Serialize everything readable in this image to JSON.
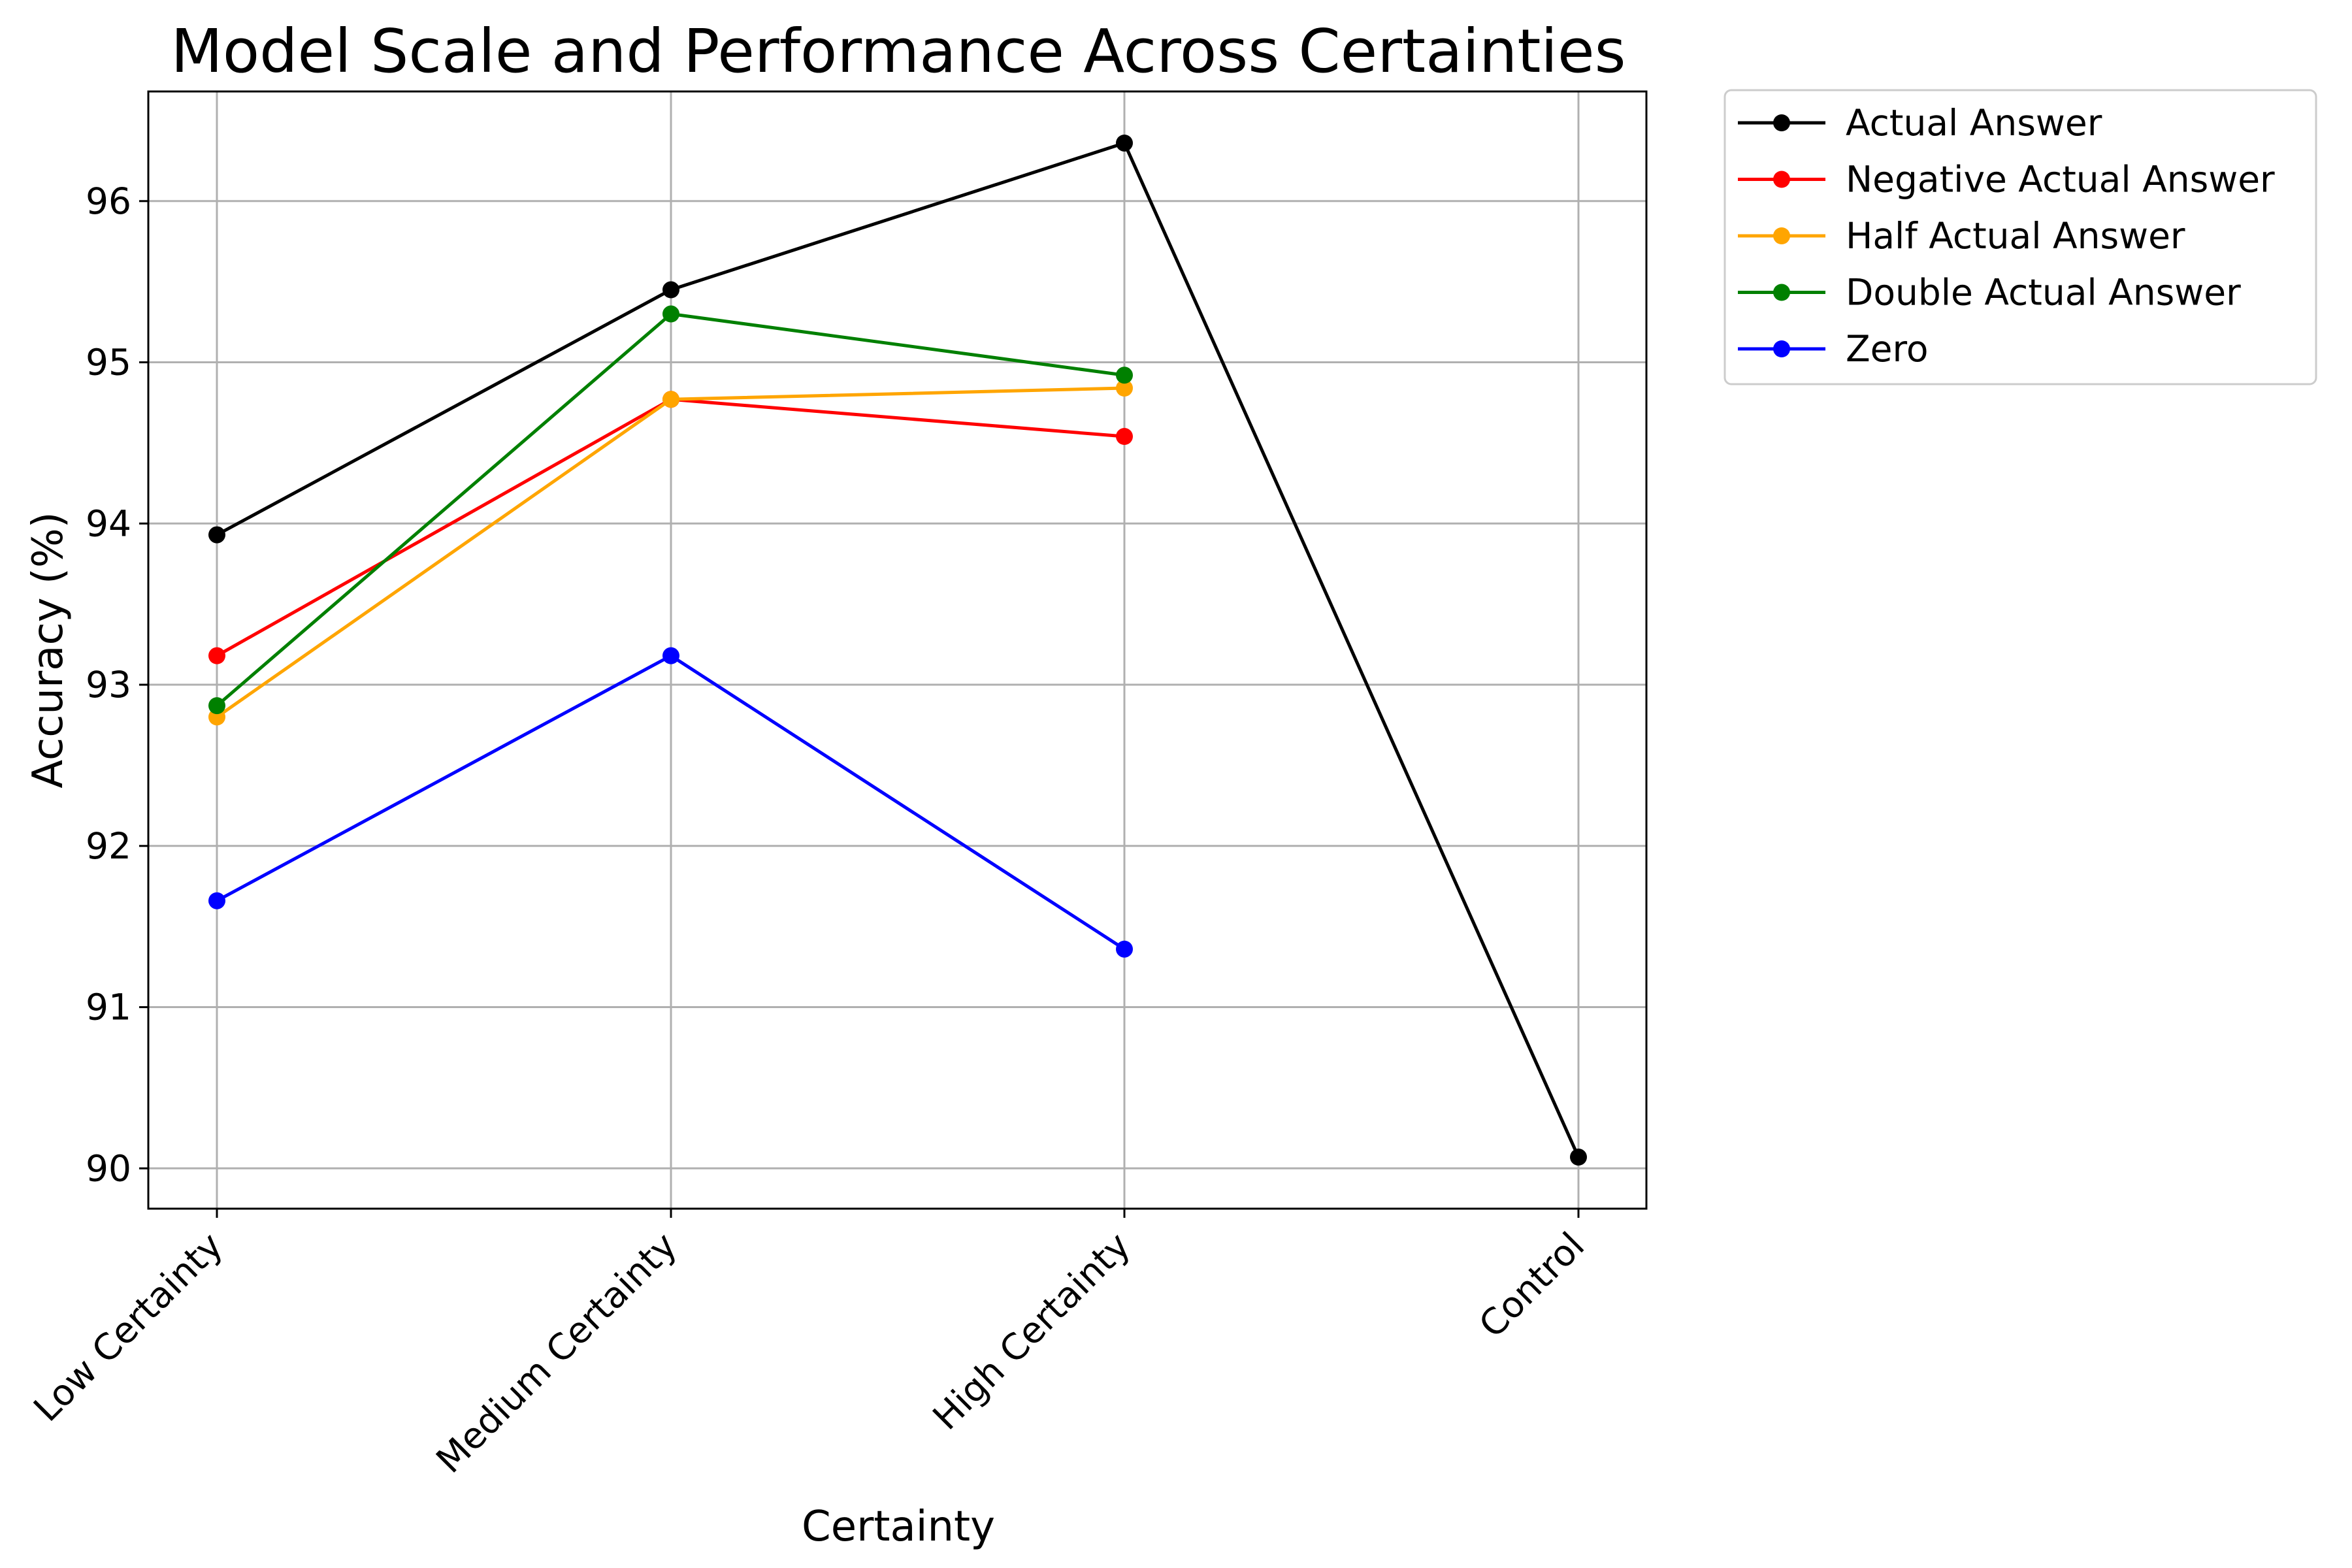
{
  "chart_data": {
    "type": "line",
    "title": "Model Scale and Performance Across Certainties",
    "xlabel": "Certainty",
    "ylabel": "Accuracy (%)",
    "categories": [
      "Low Certainty",
      "Medium Certainty",
      "High Certainty",
      "Control"
    ],
    "ylim": [
      89.75,
      96.68
    ],
    "yticks": [
      90,
      91,
      92,
      93,
      94,
      95,
      96
    ],
    "grid": true,
    "legend_position": "outside-top-right",
    "series": [
      {
        "name": "Actual Answer",
        "color": "#000000",
        "values": [
          93.93,
          95.45,
          96.36,
          90.07
        ]
      },
      {
        "name": "Negative Actual Answer",
        "color": "#ff0000",
        "values": [
          93.18,
          94.77,
          94.54,
          null
        ]
      },
      {
        "name": "Half Actual Answer",
        "color": "#ffa500",
        "values": [
          92.8,
          94.77,
          94.84,
          null
        ]
      },
      {
        "name": "Double Actual Answer",
        "color": "#008000",
        "values": [
          92.87,
          95.3,
          94.92,
          null
        ]
      },
      {
        "name": "Zero",
        "color": "#0000ff",
        "values": [
          91.66,
          93.18,
          91.36,
          null
        ]
      }
    ]
  }
}
